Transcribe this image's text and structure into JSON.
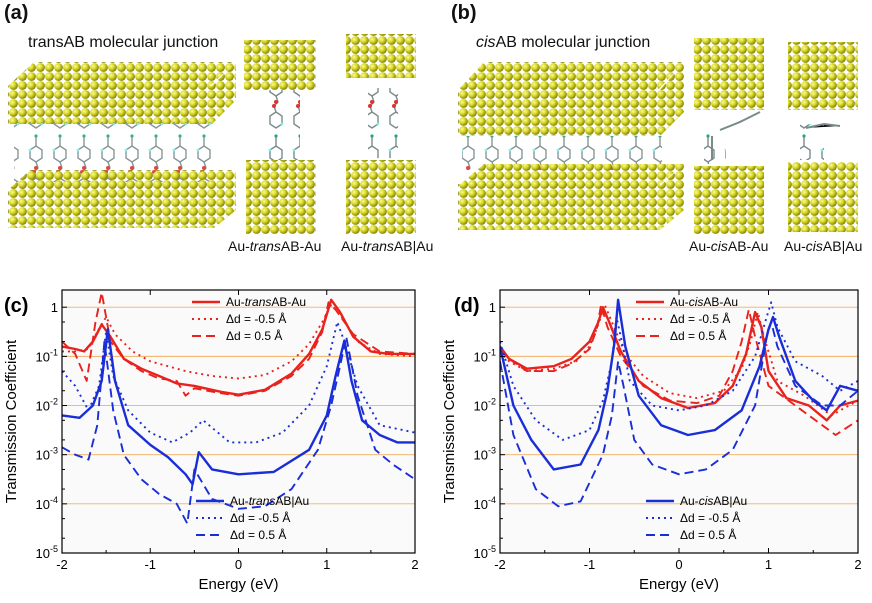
{
  "labels": {
    "a": "(a)",
    "b": "(b)",
    "c": "(c)",
    "d": "(d)"
  },
  "panel_a": {
    "title_pre": "",
    "title_em": "",
    "title_post": "transAB molecular junction",
    "cap1_pre": "Au-",
    "cap1_em": "trans",
    "cap1_post": "AB-Au",
    "cap2_pre": "Au-",
    "cap2_em": "trans",
    "cap2_post": "AB|Au"
  },
  "panel_b": {
    "title_pre": "",
    "title_em": "cis",
    "title_post": "AB molecular junction",
    "cap1_pre": "Au-",
    "cap1_em": "cis",
    "cap1_post": "AB-Au",
    "cap2_pre": "Au-",
    "cap2_em": "cis",
    "cap2_post": "AB|Au"
  },
  "colors": {
    "gold": "#c8c814",
    "red": "#e8231e",
    "blue": "#1a2ed8",
    "grid": "#f0b060"
  },
  "chart_data": [
    {
      "type": "line",
      "id": "c",
      "xlabel": "Energy (eV)",
      "ylabel": "Transmission Coefficient",
      "xlim": [
        -2,
        2
      ],
      "ylim_log10": [
        -5,
        0.35
      ],
      "xticks": [
        "-2",
        "-1",
        "0",
        "1",
        "2"
      ],
      "yticks": [
        {
          "base": "10",
          "exp": "-5"
        },
        {
          "base": "10",
          "exp": "-4"
        },
        {
          "base": "10",
          "exp": "-3"
        },
        {
          "base": "10",
          "exp": "-2"
        },
        {
          "base": "10",
          "exp": "-1"
        },
        {
          "base": "1",
          "exp": ""
        }
      ],
      "legend_top": [
        {
          "label_pre": "Au-",
          "label_em": "trans",
          "label_post": "AB-Au",
          "dash": "solid"
        },
        {
          "label_pre": "Δd = -0.5 Å",
          "label_em": "",
          "label_post": "",
          "dash": "dot"
        },
        {
          "label_pre": "Δd = 0.5 Å",
          "label_em": "",
          "label_post": "",
          "dash": "dash"
        }
      ],
      "legend_bottom": [
        {
          "label_pre": "Au-",
          "label_em": "trans",
          "label_post": "AB|Au",
          "dash": "solid"
        },
        {
          "label_pre": "Δd = -0.5 Å",
          "label_em": "",
          "label_post": "",
          "dash": "dot"
        },
        {
          "label_pre": "Δd = 0.5 Å",
          "label_em": "",
          "label_post": "",
          "dash": "dash"
        }
      ],
      "series": [
        {
          "name": "red-solid",
          "color": "red",
          "dash": "solid",
          "x": [
            -2,
            -1.85,
            -1.75,
            -1.65,
            -1.55,
            -1.45,
            -1.3,
            -1.1,
            -0.9,
            -0.7,
            -0.5,
            -0.2,
            0,
            0.3,
            0.6,
            0.8,
            0.95,
            1.05,
            1.15,
            1.3,
            1.5,
            1.7,
            2
          ],
          "log10y": [
            -0.8,
            -0.85,
            -0.9,
            -0.7,
            -0.35,
            -0.6,
            -1.05,
            -1.25,
            -1.4,
            -1.55,
            -1.6,
            -1.72,
            -1.78,
            -1.68,
            -1.35,
            -0.95,
            -0.45,
            0.15,
            -0.1,
            -0.6,
            -0.9,
            -0.95,
            -0.95
          ]
        },
        {
          "name": "red-dot",
          "color": "red",
          "dash": "dot",
          "x": [
            -2,
            -1.85,
            -1.7,
            -1.6,
            -1.5,
            -1.4,
            -1.2,
            -1,
            -0.8,
            -0.6,
            -0.3,
            0,
            0.3,
            0.6,
            0.8,
            0.95,
            1.05,
            1.15,
            1.35,
            1.6,
            2
          ],
          "log10y": [
            -0.9,
            -0.9,
            -0.85,
            -0.5,
            -0.2,
            -0.55,
            -0.9,
            -1.1,
            -1.2,
            -1.3,
            -1.4,
            -1.45,
            -1.38,
            -1.1,
            -0.75,
            -0.3,
            0.05,
            -0.15,
            -0.7,
            -0.95,
            -1.0
          ]
        },
        {
          "name": "red-dash",
          "color": "red",
          "dash": "dash",
          "x": [
            -2,
            -1.85,
            -1.72,
            -1.62,
            -1.55,
            -1.45,
            -1.3,
            -1.1,
            -0.9,
            -0.7,
            -0.6,
            -0.5,
            -0.2,
            0,
            0.3,
            0.6,
            0.8,
            0.95,
            1.02,
            1.1,
            1.3,
            1.6,
            2
          ],
          "log10y": [
            -0.7,
            -0.95,
            -1.5,
            -0.3,
            0.3,
            -0.7,
            -1.05,
            -1.3,
            -1.45,
            -1.5,
            -1.8,
            -1.65,
            -1.75,
            -1.8,
            -1.7,
            -1.4,
            -1.05,
            -0.5,
            0.1,
            -0.05,
            -0.55,
            -0.9,
            -0.95
          ]
        },
        {
          "name": "blue-solid",
          "color": "blue",
          "dash": "solid",
          "x": [
            -2,
            -1.8,
            -1.65,
            -1.55,
            -1.48,
            -1.4,
            -1.25,
            -1,
            -0.8,
            -0.6,
            -0.52,
            -0.45,
            -0.3,
            0,
            0.4,
            0.8,
            1,
            1.1,
            1.2,
            1.28,
            1.4,
            1.6,
            1.8,
            2
          ],
          "log10y": [
            -2.2,
            -2.25,
            -2.0,
            -1.5,
            -0.45,
            -1.5,
            -2.4,
            -2.8,
            -3.05,
            -3.4,
            -3.6,
            -2.95,
            -3.3,
            -3.4,
            -3.35,
            -2.9,
            -2.2,
            -1.4,
            -0.68,
            -1.5,
            -2.3,
            -2.6,
            -2.75,
            -2.75
          ]
        },
        {
          "name": "blue-dot",
          "color": "blue",
          "dash": "dot",
          "x": [
            -2,
            -1.85,
            -1.7,
            -1.58,
            -1.5,
            -1.42,
            -1.25,
            -1,
            -0.75,
            -0.55,
            -0.4,
            -0.1,
            0.2,
            0.5,
            0.8,
            1,
            1.12,
            1.2,
            1.35,
            1.6,
            2
          ],
          "log10y": [
            -1.3,
            -1.6,
            -2.1,
            -1.6,
            -0.5,
            -1.4,
            -2.1,
            -2.55,
            -2.75,
            -2.55,
            -2.3,
            -2.75,
            -2.75,
            -2.55,
            -2.0,
            -1.2,
            -0.3,
            -0.7,
            -1.6,
            -2.4,
            -2.55
          ]
        },
        {
          "name": "blue-dash",
          "color": "blue",
          "dash": "dash",
          "x": [
            -2,
            -1.85,
            -1.7,
            -1.6,
            -1.52,
            -1.42,
            -1.3,
            -1.1,
            -0.9,
            -0.7,
            -0.58,
            -0.5,
            -0.3,
            0,
            0.3,
            0.6,
            0.9,
            1.05,
            1.15,
            1.22,
            1.35,
            1.55,
            1.75,
            2
          ],
          "log10y": [
            -2.85,
            -3.0,
            -3.1,
            -2.4,
            -0.7,
            -2.1,
            -3.0,
            -3.5,
            -3.8,
            -4.0,
            -4.4,
            -3.3,
            -3.9,
            -4.1,
            -4.05,
            -3.7,
            -2.9,
            -2.0,
            -1.2,
            -0.6,
            -1.8,
            -2.9,
            -3.2,
            -3.5
          ]
        }
      ]
    },
    {
      "type": "line",
      "id": "d",
      "xlabel": "Energy (eV)",
      "ylabel": "Transmission Coefficient",
      "xlim": [
        -2,
        2
      ],
      "ylim_log10": [
        -5,
        0.35
      ],
      "xticks": [
        "-2",
        "-1",
        "0",
        "1",
        "2"
      ],
      "yticks": [
        {
          "base": "10",
          "exp": "-5"
        },
        {
          "base": "10",
          "exp": "-4"
        },
        {
          "base": "10",
          "exp": "-3"
        },
        {
          "base": "10",
          "exp": "-2"
        },
        {
          "base": "10",
          "exp": "-1"
        },
        {
          "base": "1",
          "exp": ""
        }
      ],
      "legend_top": [
        {
          "label_pre": "Au-",
          "label_em": "cis",
          "label_post": "AB-Au",
          "dash": "solid"
        },
        {
          "label_pre": "Δd = -0.5 Å",
          "label_em": "",
          "label_post": "",
          "dash": "dot"
        },
        {
          "label_pre": "Δd = 0.5 Å",
          "label_em": "",
          "label_post": "",
          "dash": "dash"
        }
      ],
      "legend_bottom": [
        {
          "label_pre": "Au-",
          "label_em": "cis",
          "label_post": "AB|Au",
          "dash": "solid"
        },
        {
          "label_pre": "Δd = -0.5 Å",
          "label_em": "",
          "label_post": "",
          "dash": "dot"
        },
        {
          "label_pre": "Δd = 0.5 Å",
          "label_em": "",
          "label_post": "",
          "dash": "dash"
        }
      ],
      "series": [
        {
          "name": "red-solid",
          "color": "red",
          "dash": "solid",
          "x": [
            -2,
            -1.9,
            -1.7,
            -1.4,
            -1.2,
            -1,
            -0.9,
            -0.85,
            -0.78,
            -0.65,
            -0.45,
            -0.2,
            0.1,
            0.4,
            0.6,
            0.75,
            0.85,
            0.92,
            1,
            1.2,
            1.45,
            1.65,
            1.8,
            2
          ],
          "log10y": [
            -0.8,
            -1.05,
            -1.25,
            -1.2,
            -1.05,
            -0.7,
            -0.3,
            0.0,
            -0.3,
            -0.9,
            -1.5,
            -1.85,
            -2.05,
            -1.95,
            -1.6,
            -0.95,
            -0.1,
            -0.4,
            -1.3,
            -1.85,
            -2.0,
            -2.3,
            -2.0,
            -1.9
          ]
        },
        {
          "name": "red-dot",
          "color": "red",
          "dash": "dot",
          "x": [
            -2,
            -1.9,
            -1.7,
            -1.4,
            -1.15,
            -1,
            -0.9,
            -0.83,
            -0.75,
            -0.6,
            -0.4,
            -0.1,
            0.2,
            0.5,
            0.7,
            0.8,
            0.88,
            0.95,
            1.1,
            1.4,
            1.7,
            2
          ],
          "log10y": [
            -0.9,
            -1.1,
            -1.3,
            -1.25,
            -1.1,
            -0.8,
            -0.35,
            0.05,
            -0.3,
            -0.95,
            -1.4,
            -1.75,
            -1.85,
            -1.7,
            -1.25,
            -0.7,
            -0.1,
            -0.6,
            -1.5,
            -1.8,
            -2.2,
            -1.9
          ]
        },
        {
          "name": "red-dash",
          "color": "red",
          "dash": "dash",
          "x": [
            -2,
            -1.9,
            -1.7,
            -1.4,
            -1.2,
            -1,
            -0.92,
            -0.87,
            -0.8,
            -0.65,
            -0.4,
            -0.1,
            0.2,
            0.45,
            0.6,
            0.7,
            0.78,
            0.85,
            1,
            1.3,
            1.6,
            1.75,
            2
          ],
          "log10y": [
            -0.85,
            -1.05,
            -1.3,
            -1.3,
            -1.15,
            -0.85,
            -0.45,
            0.05,
            -0.4,
            -1.0,
            -1.6,
            -1.9,
            -1.95,
            -1.8,
            -1.3,
            -0.7,
            -0.05,
            -0.6,
            -1.6,
            -2.0,
            -2.4,
            -2.6,
            -2.3
          ]
        },
        {
          "name": "blue-solid",
          "color": "blue",
          "dash": "solid",
          "x": [
            -2,
            -1.85,
            -1.65,
            -1.4,
            -1.1,
            -0.9,
            -0.8,
            -0.72,
            -0.68,
            -0.6,
            -0.45,
            -0.2,
            0.1,
            0.4,
            0.7,
            0.9,
            1.0,
            1.05,
            1.12,
            1.3,
            1.5,
            1.65,
            1.8,
            2
          ],
          "log10y": [
            -0.8,
            -2.0,
            -2.7,
            -3.3,
            -3.2,
            -2.5,
            -1.7,
            -0.7,
            0.15,
            -0.8,
            -1.8,
            -2.4,
            -2.6,
            -2.5,
            -2.1,
            -1.2,
            -0.45,
            -0.2,
            -0.6,
            -1.5,
            -1.9,
            -2.1,
            -1.6,
            -1.7
          ]
        },
        {
          "name": "blue-dot",
          "color": "blue",
          "dash": "dot",
          "x": [
            -2,
            -1.85,
            -1.6,
            -1.3,
            -1,
            -0.85,
            -0.75,
            -0.7,
            -0.65,
            -0.55,
            -0.3,
            0,
            0.3,
            0.6,
            0.85,
            0.98,
            1.03,
            1.1,
            1.3,
            1.6,
            1.8,
            2
          ],
          "log10y": [
            -0.7,
            -1.6,
            -2.3,
            -2.7,
            -2.5,
            -1.9,
            -1.1,
            -0.2,
            -0.6,
            -1.5,
            -2.0,
            -2.1,
            -2.0,
            -1.7,
            -1.0,
            -0.2,
            0.1,
            -0.4,
            -1.1,
            -1.4,
            -1.7,
            -1.5
          ]
        },
        {
          "name": "blue-dash",
          "color": "blue",
          "dash": "dash",
          "x": [
            -2,
            -1.85,
            -1.6,
            -1.35,
            -1.1,
            -0.85,
            -0.75,
            -0.68,
            -0.62,
            -0.5,
            -0.3,
            0,
            0.3,
            0.6,
            0.85,
            0.98,
            1.03,
            1.1,
            1.3,
            1.6,
            1.8,
            2
          ],
          "log10y": [
            -1.1,
            -2.6,
            -3.7,
            -4.05,
            -3.95,
            -3.0,
            -2.2,
            -1.1,
            -1.6,
            -2.7,
            -3.2,
            -3.4,
            -3.3,
            -2.9,
            -2.0,
            -0.6,
            -0.3,
            -0.8,
            -1.6,
            -2.0,
            -2.0,
            -1.7
          ]
        }
      ]
    }
  ]
}
